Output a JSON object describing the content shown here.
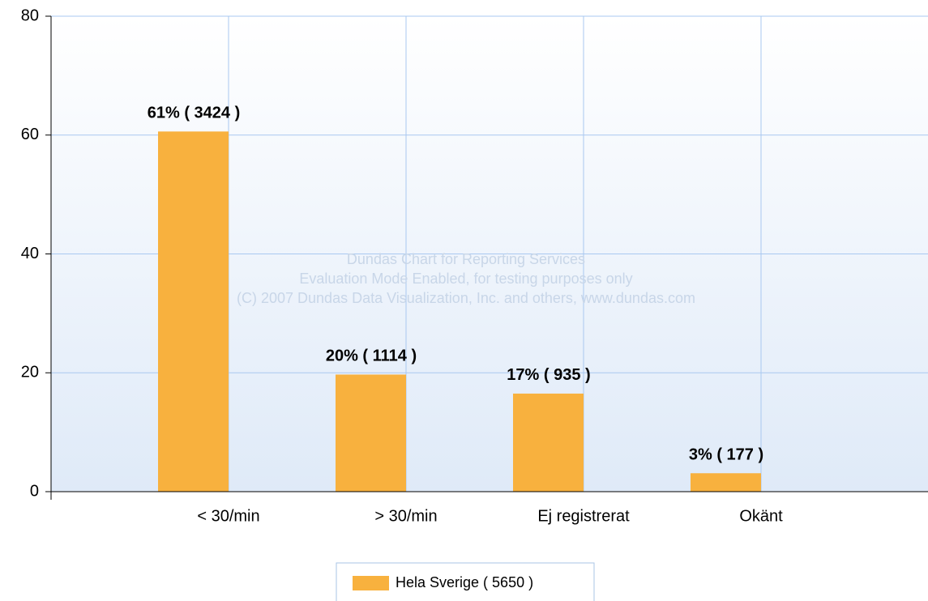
{
  "chart_data": {
    "type": "bar",
    "categories": [
      "< 30/min",
      "> 30/min",
      "Ej registrerat",
      "Okänt"
    ],
    "series": [
      {
        "name": "Hela Sverige  ( 5650 )",
        "color": "#f8b13e",
        "values": [
          60.6,
          19.7,
          16.5,
          3.1
        ],
        "value_labels": [
          "61% ( 3424 )",
          "20% ( 1114 )",
          "17% ( 935 )",
          "3% ( 177 )"
        ]
      }
    ],
    "ylim": [
      0,
      80
    ],
    "yticks": [
      0,
      20,
      40,
      60,
      80
    ],
    "grid": true,
    "watermark": [
      "Dundas Chart for Reporting Services",
      "Evaluation Mode Enabled, for testing purposes only",
      "(C) 2007 Dundas Data Visualization, Inc. and others, www.dundas.com"
    ]
  }
}
